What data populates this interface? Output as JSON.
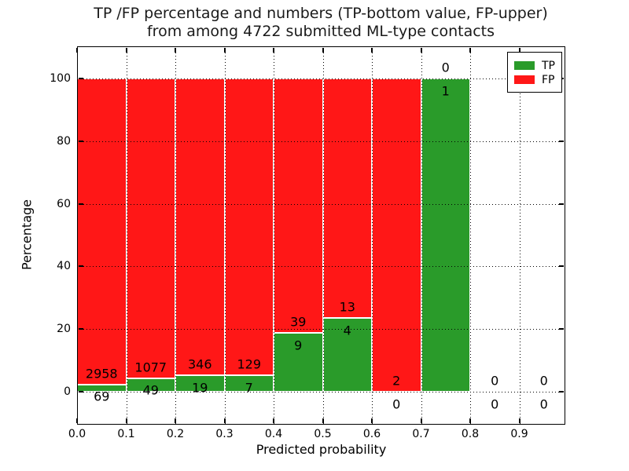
{
  "chart_data": {
    "type": "bar",
    "stacked": true,
    "normalized": "each bin scaled to 100 percent",
    "title_line1": "TP /FP percentage and numbers (TP-bottom value, FP-upper)",
    "title_line2": "from among 4722 submitted ML-type contacts",
    "total_submitted_contacts": 4722,
    "xlabel": "Predicted probability",
    "ylabel": "Percentage",
    "xlim": [
      0.0,
      0.99
    ],
    "ylim": [
      -10,
      110
    ],
    "grid": true,
    "grid_linestyle": "dotted",
    "bin_width": 0.1,
    "categories": [
      "0.0-0.1",
      "0.1-0.2",
      "0.2-0.3",
      "0.3-0.4",
      "0.4-0.5",
      "0.5-0.6",
      "0.6-0.7",
      "0.7-0.8",
      "0.8-0.9",
      "0.9-1.0"
    ],
    "series": [
      {
        "name": "TP",
        "color": "#2a9b2a",
        "position": "bottom",
        "counts": [
          69,
          49,
          19,
          7,
          9,
          4,
          0,
          1,
          0,
          0
        ]
      },
      {
        "name": "FP",
        "color": "#ff1717",
        "position": "top",
        "counts": [
          2958,
          1077,
          346,
          129,
          39,
          13,
          2,
          0,
          0,
          0
        ]
      }
    ],
    "x_tick_values": [
      0,
      0.1,
      0.2,
      0.3,
      0.4,
      0.5,
      0.6,
      0.7,
      0.8,
      0.9
    ],
    "x_tick_labels": [
      "0.0",
      "0.1",
      "0.2",
      "0.3",
      "0.4",
      "0.5",
      "0.6",
      "0.7",
      "0.8",
      "0.9"
    ],
    "y_tick_values": [
      0,
      20,
      40,
      60,
      80,
      100
    ],
    "y_tick_labels": [
      "0",
      "20",
      "40",
      "60",
      "80",
      "100"
    ],
    "bar_edge_color": "#ffffff",
    "legend": {
      "position": "upper right",
      "entries": [
        {
          "label": "TP",
          "color": "#2a9b2a"
        },
        {
          "label": "FP",
          "color": "#ff1717"
        }
      ]
    }
  },
  "colors": {
    "background": "#ffffff",
    "text": "#000000",
    "axis": "#000000",
    "grid": "#000000"
  }
}
